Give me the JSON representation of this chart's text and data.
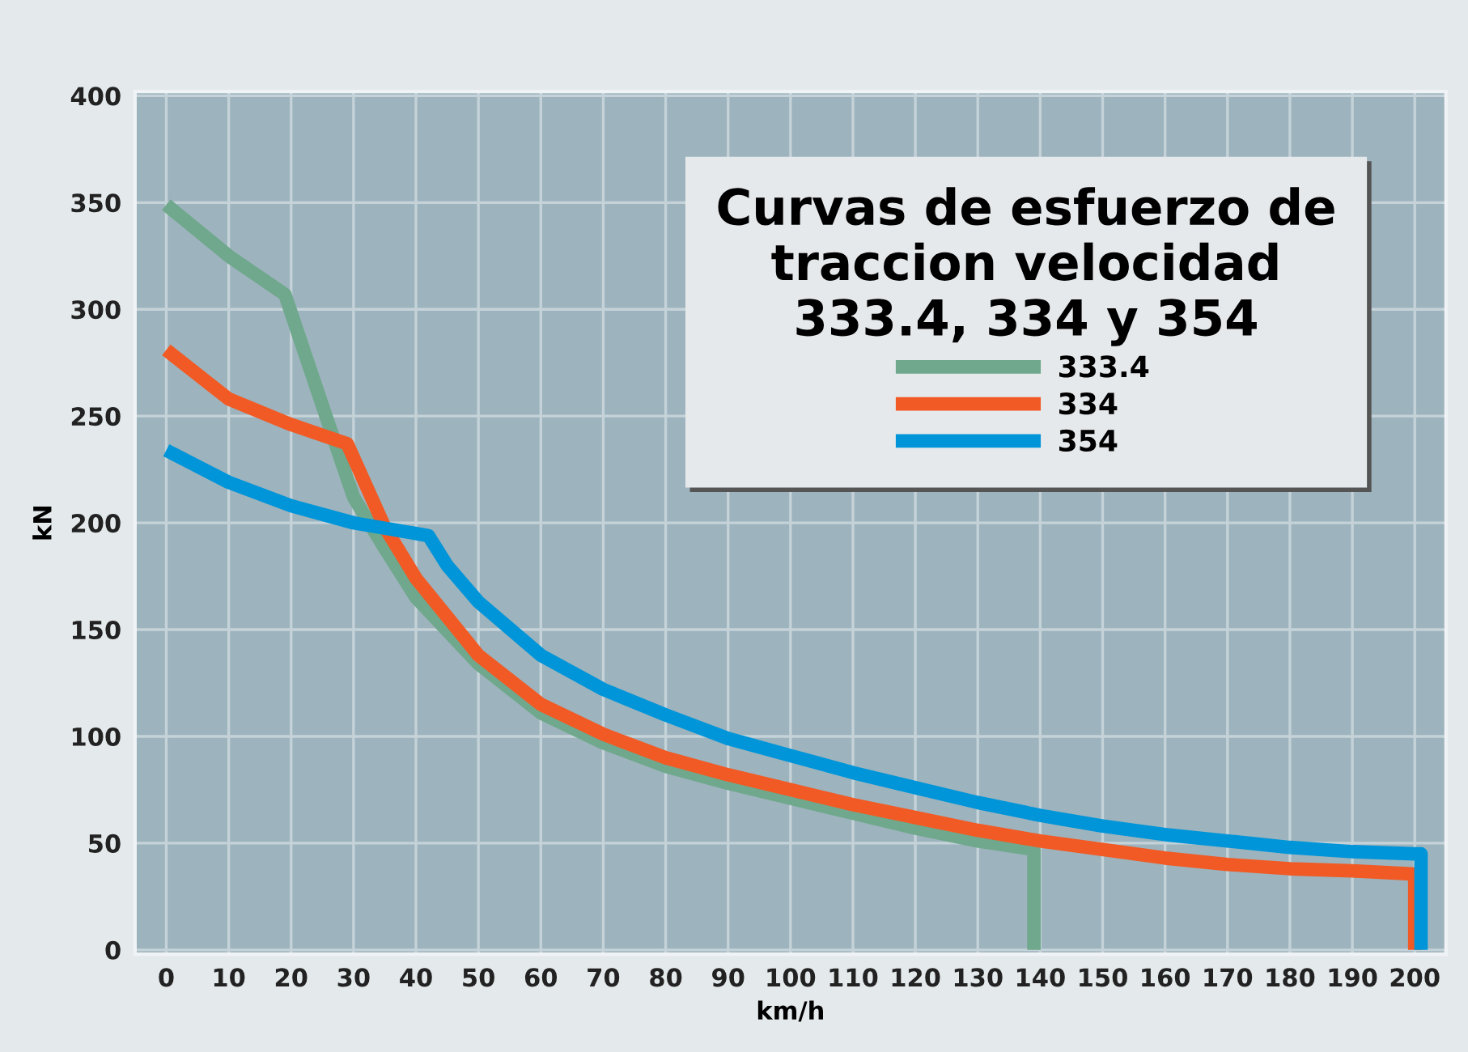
{
  "chart_data": {
    "type": "line",
    "title": "Curvas de esfuerzo de\ntraccion velocidad\n333.4, 334 y 354",
    "xlabel": "km/h",
    "ylabel": "kN",
    "xlim": [
      -5,
      205
    ],
    "xticks": [
      0,
      10,
      20,
      30,
      40,
      50,
      60,
      70,
      80,
      90,
      100,
      110,
      120,
      130,
      140,
      150,
      160,
      170,
      180,
      190,
      200
    ],
    "ylim": [
      -2,
      402
    ],
    "yticks": [
      0,
      50,
      100,
      150,
      200,
      250,
      300,
      350,
      400
    ],
    "grid": true,
    "legend": "top right",
    "line_style": "solid",
    "marker": "none",
    "series": [
      {
        "name": "333.4",
        "color": "#6fa88c",
        "x": [
          0,
          10,
          19,
          25,
          30,
          35,
          40,
          50,
          60,
          70,
          80,
          90,
          100,
          110,
          120,
          130,
          139,
          139
        ],
        "values": [
          349,
          325,
          307,
          255,
          212,
          188,
          165,
          134,
          111,
          97,
          86,
          78,
          71,
          64,
          57,
          51,
          47,
          0
        ]
      },
      {
        "name": "334",
        "color": "#f15a24",
        "x": [
          0,
          10,
          20,
          29,
          35,
          40,
          50,
          60,
          70,
          80,
          90,
          100,
          110,
          120,
          130,
          140,
          150,
          160,
          170,
          180,
          190,
          200,
          200
        ],
        "values": [
          281,
          258,
          246,
          237,
          198,
          174,
          138,
          115,
          101,
          90,
          82,
          75,
          68,
          62,
          56,
          51,
          47,
          43,
          40,
          38,
          37,
          35.5,
          0
        ]
      },
      {
        "name": "354",
        "color": "#0095d9",
        "x": [
          0,
          10,
          20,
          30,
          42,
          45,
          50,
          60,
          70,
          80,
          90,
          100,
          110,
          120,
          130,
          140,
          150,
          160,
          170,
          180,
          190,
          200,
          201,
          201
        ],
        "values": [
          234,
          219,
          208,
          200,
          194,
          180,
          163,
          138,
          122,
          110,
          99,
          91,
          83,
          76,
          69,
          63,
          58,
          54,
          51,
          48,
          46,
          45,
          45,
          0
        ]
      }
    ]
  }
}
